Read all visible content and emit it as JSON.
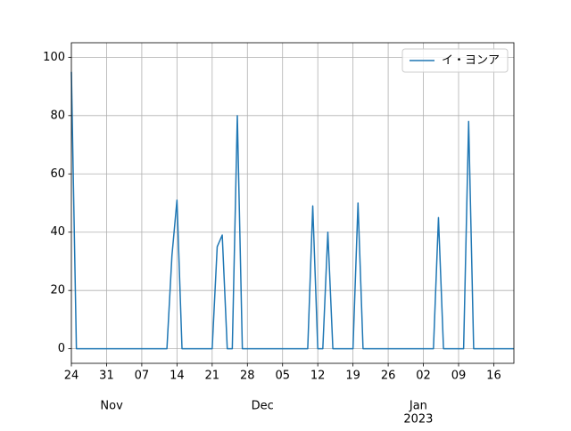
{
  "chart_data": {
    "type": "line",
    "x": [
      0,
      1,
      2,
      3,
      4,
      5,
      6,
      7,
      8,
      9,
      10,
      11,
      12,
      13,
      14,
      15,
      16,
      17,
      18,
      19,
      20,
      21,
      22,
      23,
      24,
      25,
      26,
      27,
      28,
      29,
      30,
      31,
      32,
      33,
      34,
      35,
      36,
      37,
      38,
      39,
      40,
      41,
      42,
      43,
      44,
      45,
      46,
      47,
      48,
      49,
      50,
      51,
      52,
      53,
      54,
      55,
      56,
      57,
      58,
      59,
      60,
      61,
      62,
      63,
      64,
      65,
      66,
      67,
      68,
      69,
      70,
      71,
      72,
      73,
      74,
      75,
      76,
      77,
      78,
      79,
      80,
      81,
      82,
      83,
      84,
      85,
      86,
      87,
      88
    ],
    "series": [
      {
        "name": "イ・ヨンア",
        "color": "#1f77b4",
        "values": [
          95,
          0,
          0,
          0,
          0,
          0,
          0,
          0,
          0,
          0,
          0,
          0,
          0,
          0,
          0,
          0,
          0,
          0,
          0,
          0,
          32,
          51,
          0,
          0,
          0,
          0,
          0,
          0,
          0,
          35,
          39,
          0,
          0,
          80,
          0,
          0,
          0,
          0,
          0,
          0,
          0,
          0,
          0,
          0,
          0,
          0,
          0,
          0,
          49,
          0,
          0,
          40,
          0,
          0,
          0,
          0,
          0,
          50,
          0,
          0,
          0,
          0,
          0,
          0,
          0,
          0,
          0,
          0,
          0,
          0,
          0,
          0,
          0,
          45,
          0,
          0,
          0,
          0,
          0,
          78,
          0,
          0,
          0,
          0,
          0,
          0,
          0,
          0,
          0
        ]
      }
    ],
    "xlim": [
      0,
      88
    ],
    "xticks": [
      {
        "value": 0,
        "label": "24"
      },
      {
        "value": 7,
        "label": "31"
      },
      {
        "value": 14,
        "label": "07"
      },
      {
        "value": 21,
        "label": "14"
      },
      {
        "value": 28,
        "label": "21"
      },
      {
        "value": 35,
        "label": "28"
      },
      {
        "value": 42,
        "label": "05"
      },
      {
        "value": 49,
        "label": "12"
      },
      {
        "value": 56,
        "label": "19"
      },
      {
        "value": 63,
        "label": "26"
      },
      {
        "value": 70,
        "label": "02"
      },
      {
        "value": 77,
        "label": "09"
      },
      {
        "value": 84,
        "label": "16"
      }
    ],
    "month_labels": [
      {
        "value": 8,
        "label": "Nov"
      },
      {
        "value": 38,
        "label": "Dec"
      },
      {
        "value": 69,
        "label": "Jan"
      }
    ],
    "year_labels": [
      {
        "value": 69,
        "label": "2023"
      }
    ],
    "ylim": [
      -5,
      105
    ],
    "yticks": [
      0,
      20,
      40,
      60,
      80,
      100
    ],
    "grid": true,
    "legend": "upper right"
  }
}
